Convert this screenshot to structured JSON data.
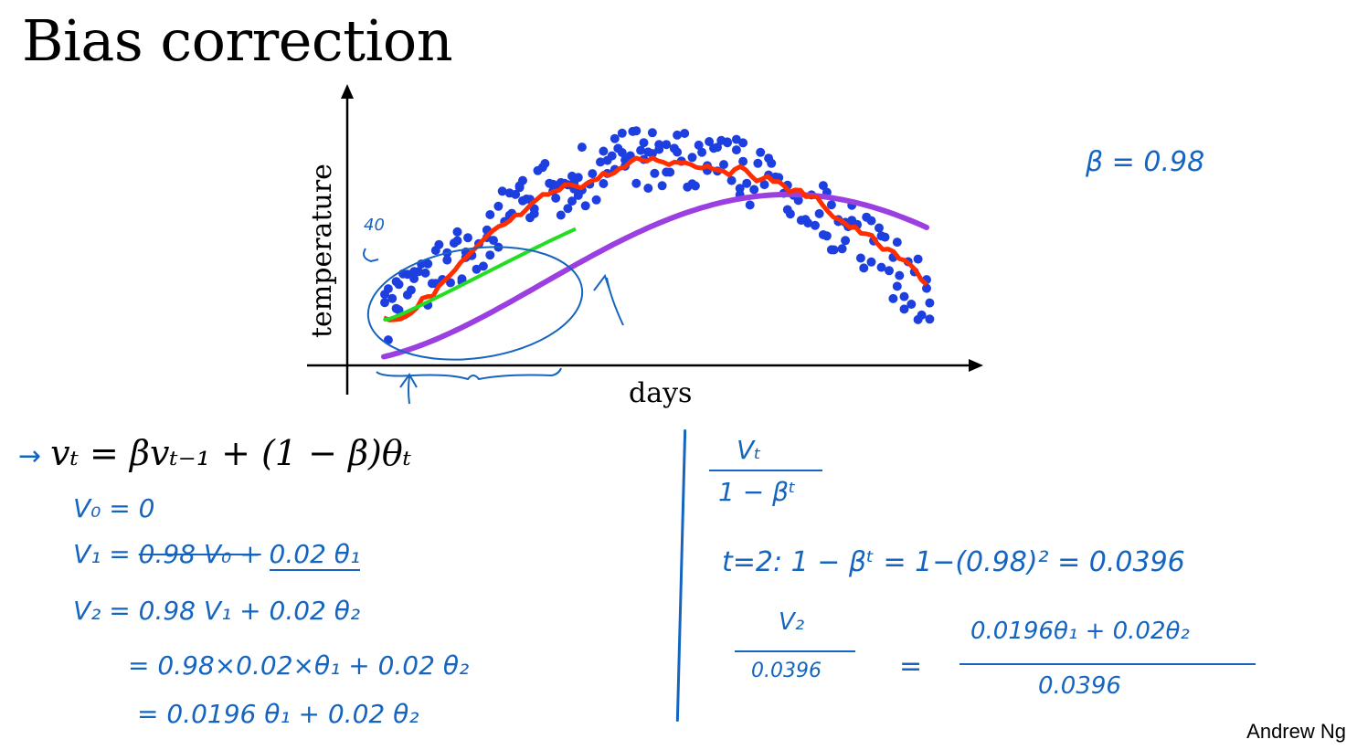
{
  "title": "Bias correction",
  "author": "Andrew Ng",
  "chart_data": {
    "type": "scatter",
    "xlabel": "days",
    "ylabel": "temperature",
    "annotation_y": "40",
    "series": [],
    "colors": {
      "points": "#1e3fe0",
      "red": "#ff2d00",
      "green": "#22dd22",
      "purple": "#9b3fe0",
      "ink": "#1565c0"
    }
  },
  "beta_note": "β = 0.98",
  "formula": {
    "arrow": "→",
    "main": "vₜ = βvₜ₋₁ + (1 − β)θₜ"
  },
  "left_steps": {
    "v0": "V₀ = 0",
    "v1_lhs": "V₁ =",
    "v1_struck": "0.98 V₀ +",
    "v1_rhs": "0.02 θ₁",
    "v2": "V₂ = 0.98 V₁ + 0.02 θ₂",
    "v2_expand": "= 0.98×0.02×θ₁ + 0.02 θ₂",
    "v2_result": "= 0.0196 θ₁ + 0.02 θ₂"
  },
  "right_steps": {
    "frac_num": "Vₜ",
    "frac_den": "1 − βᵗ",
    "t_eq": "t=2:   1 − βᵗ  =  1−(0.98)² = 0.0396",
    "v2_num": "V₂",
    "v2_den": "0.0396",
    "eq": "=",
    "big_num": "0.0196θ₁ + 0.02θ₂",
    "big_den": "0.0396"
  }
}
